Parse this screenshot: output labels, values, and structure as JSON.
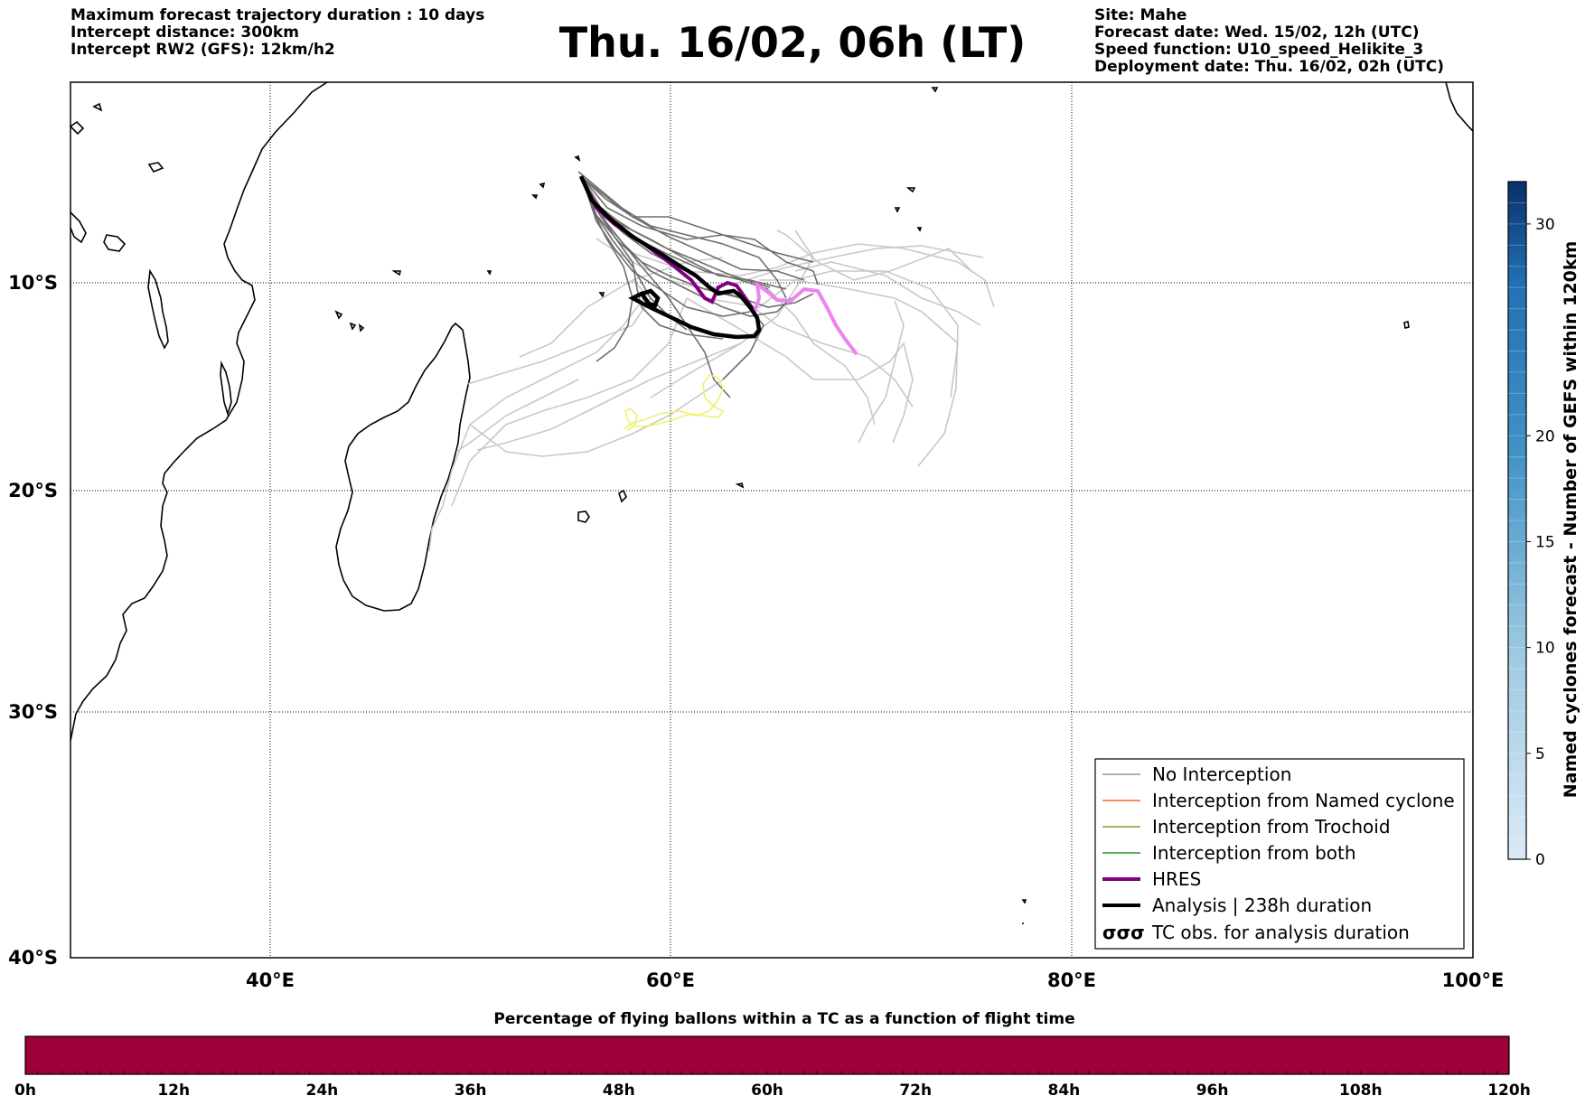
{
  "header_left": [
    "Maximum forecast trajectory duration : 10 days",
    "Intercept distance: 300km",
    "Intercept RW2 (GFS):  12km/h2"
  ],
  "header_right": [
    "Site: Mahe",
    "Forecast date: Wed. 15/02, 12h (UTC)",
    "Speed function: U10_speed_Helikite_3",
    "Deployment date: Thu. 16/02, 02h (UTC)"
  ],
  "title": "Thu. 16/02, 06h (LT)",
  "map": {
    "lon_range": [
      30,
      100
    ],
    "lat_range": [
      -40,
      0
    ],
    "lat_ticks": [
      {
        "lat": -10,
        "label": "10°S"
      },
      {
        "lat": -20,
        "label": "20°S"
      },
      {
        "lat": -30,
        "label": "30°S"
      },
      {
        "lat": -40,
        "label": "40°S"
      }
    ],
    "lon_ticks": [
      {
        "lon": 40,
        "label": "40°E"
      },
      {
        "lon": 60,
        "label": "60°E"
      },
      {
        "lon": 80,
        "label": "80°E"
      },
      {
        "lon": 100,
        "label": "100°E"
      }
    ],
    "grid": "dotted"
  },
  "legend": {
    "placement": "lower-right",
    "items": [
      {
        "label": "No Interception",
        "color": "#808080",
        "style": "thin-line"
      },
      {
        "label": "Interception from Named cyclone",
        "color": "#ff4500",
        "style": "thin-line"
      },
      {
        "label": "Interception from Trochoid",
        "color": "#808000",
        "style": "thin-line"
      },
      {
        "label": "Interception from both",
        "color": "#008000",
        "style": "thin-line"
      },
      {
        "label": "HRES",
        "color": "#800080",
        "style": "thick-line"
      },
      {
        "label": "Analysis | 238h duration",
        "color": "#000000",
        "style": "thick-line"
      },
      {
        "label": "TC obs. for analysis duration",
        "color": "#000000",
        "style": "cyclone-symbols"
      }
    ]
  },
  "colorbar_right": {
    "label": "Named cyclones forecast - Number of GEFS within 120km",
    "min": 0,
    "max": 32,
    "ticks": [
      {
        "value": 0,
        "label": "0"
      },
      {
        "value": 5,
        "label": "5"
      },
      {
        "value": 10,
        "label": "10"
      },
      {
        "value": 15,
        "label": "15"
      },
      {
        "value": 20,
        "label": "20"
      },
      {
        "value": 30,
        "label": "30"
      }
    ],
    "color_low": "#dbe9f6",
    "color_high": "#08306b"
  },
  "colorbar_bottom": {
    "title": "Percentage of flying ballons within a TC as a function of flight time",
    "fill_color": "#9e003a",
    "ticks": [
      "0h",
      "12h",
      "24h",
      "36h",
      "48h",
      "60h",
      "72h",
      "84h",
      "96h",
      "108h",
      "120h"
    ]
  }
}
